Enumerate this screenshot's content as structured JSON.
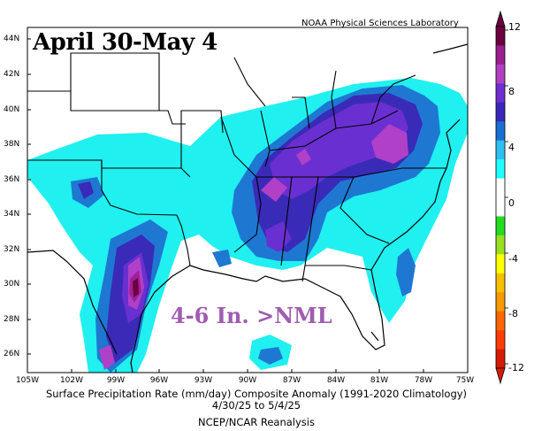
{
  "overlay": {
    "title": "April 30-May 4",
    "note": "4-6 In. >NML",
    "credit": "NOAA Physical Sciences Laboratory"
  },
  "caption": {
    "line1": "Surface Precipitation Rate (mm/day) Composite Anomaly (1991-2020 Climatology)",
    "line2": "4/30/25  to 5/4/25",
    "line3": "NCEP/NCAR Reanalysis"
  },
  "axes": {
    "lat_labels": [
      "44N",
      "42N",
      "40N",
      "38N",
      "36N",
      "34N",
      "32N",
      "30N",
      "28N",
      "26N"
    ],
    "lon_labels": [
      "105W",
      "102W",
      "99W",
      "96W",
      "93W",
      "90W",
      "87W",
      "84W",
      "81W",
      "78W",
      "75W"
    ]
  },
  "colorbar": {
    "ticks": [
      "12",
      "8",
      "4",
      "0",
      "-4",
      "-8",
      "-12"
    ],
    "colors": [
      "#6b003f",
      "#9a1f8f",
      "#b040c0",
      "#6d2fcf",
      "#3a28b8",
      "#1a6fd0",
      "#2ec0f0",
      "#20ffff",
      "#ffffff",
      "#ffffff",
      "#22dd22",
      "#99e020",
      "#ffff00",
      "#f5c000",
      "#f59a00",
      "#ff6600",
      "#ff3d00",
      "#d51c00"
    ]
  },
  "legend_colors": {
    "cyan": "#20f0f0",
    "blue": "#1e78d2",
    "indigo": "#3a2ab8",
    "purple": "#6a2fd0",
    "violet": "#b040c8",
    "magenta": "#a0209a",
    "maroon": "#6b003f"
  }
}
